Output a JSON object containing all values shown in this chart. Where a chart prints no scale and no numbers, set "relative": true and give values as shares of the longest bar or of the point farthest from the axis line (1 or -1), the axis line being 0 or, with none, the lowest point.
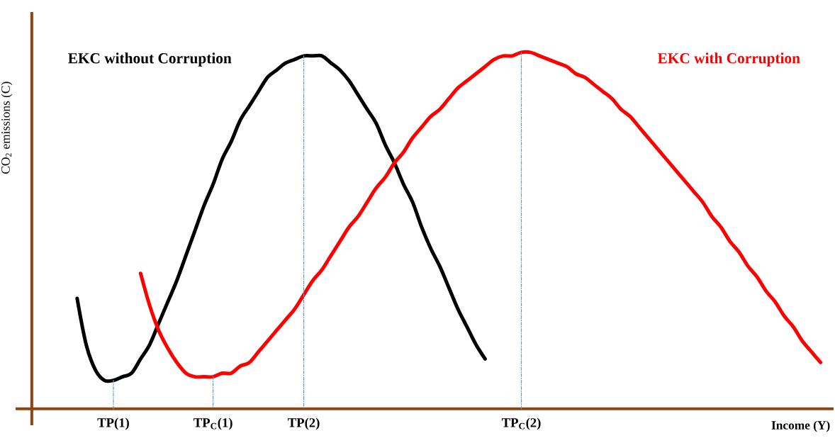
{
  "chart_data": {
    "type": "line",
    "relative": true,
    "ylabel": "CO$_{2}$ emissions (C)",
    "xlabel": "Income (Y)",
    "categories": [
      null,
      null,
      null,
      null,
      null,
      null,
      null,
      null,
      null,
      "TP(1)",
      null,
      null,
      null,
      null,
      null,
      null,
      null,
      null,
      null,
      null,
      "TP$_{C}$(1)",
      null,
      null,
      null,
      null,
      null,
      null,
      null,
      null,
      null,
      "TP(2)",
      null,
      null,
      null,
      null,
      null,
      null,
      null,
      null,
      null,
      null,
      null,
      null,
      null,
      null,
      null,
      null,
      null,
      null,
      null,
      null,
      null,
      null,
      null,
      "TP$_{C}$(2)",
      null,
      null,
      null,
      null,
      null,
      null,
      null,
      null,
      null,
      null,
      null,
      null,
      null,
      null,
      null,
      null,
      null,
      null,
      null,
      null,
      null,
      null,
      null,
      null,
      null,
      null,
      null,
      null,
      null,
      null,
      null,
      null,
      null,
      null
    ],
    "line_style": "solid",
    "series": [
      {
        "name": "EKC without Corruption",
        "color": "#000000",
        "values": [
          null,
          null,
          null,
          null,
          null,
          0.31,
          0.18,
          0.11,
          0.08,
          0.08,
          0.09,
          0.1,
          0.14,
          0.18,
          0.24,
          0.3,
          0.36,
          0.43,
          0.5,
          0.57,
          0.63,
          0.7,
          0.75,
          0.81,
          0.85,
          0.89,
          0.93,
          0.95,
          0.97,
          0.98,
          0.99,
          0.99,
          0.99,
          0.97,
          0.95,
          0.92,
          0.88,
          0.84,
          0.8,
          0.74,
          0.69,
          0.63,
          0.58,
          0.51,
          0.45,
          0.4,
          0.34,
          0.28,
          0.23,
          0.18,
          0.14,
          null,
          null,
          null,
          null,
          null,
          null,
          null,
          null,
          null,
          null,
          null,
          null,
          null,
          null,
          null,
          null,
          null,
          null,
          null,
          null,
          null,
          null,
          null,
          null,
          null,
          null,
          null,
          null,
          null,
          null,
          null,
          null,
          null,
          null,
          null,
          null,
          null,
          null
        ]
      },
      {
        "name": "EKC with Corruption",
        "color": "#ff0000",
        "values": [
          null,
          null,
          null,
          null,
          null,
          null,
          null,
          null,
          null,
          null,
          null,
          null,
          0.38,
          0.29,
          0.22,
          0.17,
          0.13,
          0.1,
          0.09,
          0.09,
          0.09,
          0.1,
          0.1,
          0.12,
          0.13,
          0.16,
          0.19,
          0.22,
          0.25,
          0.28,
          0.32,
          0.36,
          0.39,
          0.43,
          0.47,
          0.51,
          0.54,
          0.58,
          0.62,
          0.65,
          0.69,
          0.72,
          0.76,
          0.79,
          0.82,
          0.84,
          0.87,
          0.9,
          0.92,
          0.94,
          0.96,
          0.98,
          0.99,
          0.99,
          1.0,
          1.0,
          0.99,
          0.98,
          0.97,
          0.96,
          0.94,
          0.93,
          0.91,
          0.89,
          0.87,
          0.84,
          0.82,
          0.79,
          0.76,
          0.73,
          0.7,
          0.67,
          0.64,
          0.61,
          0.58,
          0.54,
          0.51,
          0.47,
          0.44,
          0.4,
          0.37,
          0.33,
          0.3,
          0.26,
          0.23,
          0.19,
          0.16,
          0.13,
          null
        ]
      },
      {
        "color": "#5b9bd5",
        "line_style": "dashed",
        "x": [
          "TP(1)",
          "TP(1)"
        ],
        "values": [
          0.08,
          0
        ]
      },
      {
        "color": "#5b9bd5",
        "line_style": "dashed",
        "x": [
          "TP$_{C}$(1)",
          "TP$_{C}$(1)"
        ],
        "values": [
          0.09,
          0
        ]
      },
      {
        "color": "#5b9bd5",
        "line_style": "dashed",
        "x": [
          "TP(2)",
          "TP(2)"
        ],
        "values": [
          0.99,
          0
        ]
      },
      {
        "color": "#5b9bd5",
        "line_style": "dashed",
        "x": [
          "TP$_{C}$(2)",
          "TP$_{C}$(2)"
        ],
        "values": [
          1.0,
          0
        ]
      }
    ]
  }
}
